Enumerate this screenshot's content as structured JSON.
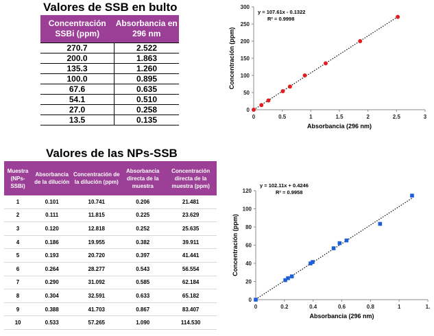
{
  "table1": {
    "title": "Valores de SSB en bulto",
    "headers": [
      "Concentración SSBi (ppm)",
      "Absorbancia en 296 nm"
    ],
    "rows": [
      [
        "270.7",
        "2.522"
      ],
      [
        "200.0",
        "1.863"
      ],
      [
        "135.3",
        "1.260"
      ],
      [
        "100.0",
        "0.895"
      ],
      [
        "67.6",
        "0.635"
      ],
      [
        "54.1",
        "0.510"
      ],
      [
        "27.0",
        "0.258"
      ],
      [
        "13.5",
        "0.135"
      ]
    ]
  },
  "table2": {
    "title": "Valores de las NPs-SSB",
    "headers": [
      "Muestra (NPs-SSBi)",
      "Absorbancia de la dilución",
      "Concentración de la dilución (ppm)",
      "Absorbancia directa de la muestra",
      "Concentración directa de la muestra (ppm)"
    ],
    "rows": [
      [
        "1",
        "0.101",
        "10.741",
        "0.206",
        "21.481"
      ],
      [
        "2",
        "0.111",
        "11.815",
        "0.225",
        "23.629"
      ],
      [
        "3",
        "0.120",
        "12.818",
        "0.252",
        "25.635"
      ],
      [
        "4",
        "0.186",
        "19.955",
        "0.382",
        "39.911"
      ],
      [
        "5",
        "0.193",
        "20.720",
        "0.397",
        "41.441"
      ],
      [
        "6",
        "0.264",
        "28.277",
        "0.543",
        "56.554"
      ],
      [
        "7",
        "0.290",
        "31.092",
        "0.585",
        "62.184"
      ],
      [
        "8",
        "0.304",
        "32.591",
        "0.633",
        "65.182"
      ],
      [
        "9",
        "0.388",
        "41.703",
        "0.867",
        "83.407"
      ],
      [
        "10",
        "0.533",
        "57.265",
        "1.090",
        "114.530"
      ]
    ]
  },
  "chart_data": [
    {
      "type": "scatter",
      "xlabel": "Absorbancia (296 nm)",
      "ylabel": "Concentración (ppm)",
      "xlim": [
        0,
        3
      ],
      "ylim": [
        0,
        300
      ],
      "xticks": [
        "0",
        "0.5",
        "1",
        "1.5",
        "2",
        "2.5",
        "3"
      ],
      "yticks": [
        "0",
        "50",
        "100",
        "150",
        "200",
        "250",
        "300"
      ],
      "equation": "y = 107.61x - 0.1322",
      "r2": "R² = 0.9998",
      "marker_color": "#e02020",
      "marker": "circle",
      "trendline": {
        "slope": 107.61,
        "intercept": -0.1322,
        "x0": 0,
        "x1": 2.522
      },
      "points": [
        [
          0,
          0
        ],
        [
          0.135,
          13.5
        ],
        [
          0.258,
          27.0
        ],
        [
          0.51,
          54.1
        ],
        [
          0.635,
          67.6
        ],
        [
          0.895,
          100.0
        ],
        [
          1.26,
          135.3
        ],
        [
          1.863,
          200.0
        ],
        [
          2.522,
          270.7
        ]
      ]
    },
    {
      "type": "scatter",
      "xlabel": "Absorbancia (296 nm)",
      "ylabel": "Concentración (ppm)",
      "xlim": [
        0,
        1.2
      ],
      "ylim": [
        0,
        120
      ],
      "xticks": [
        "0",
        "0.2",
        "0.4",
        "0.6",
        "0.8",
        "1",
        "1."
      ],
      "yticks": [
        "0",
        "20",
        "40",
        "60",
        "80",
        "100",
        "120"
      ],
      "equation": "y = 102.11x + 0.4246",
      "r2": "R² = 0.9958",
      "marker_color": "#1f5fd6",
      "marker": "square",
      "trendline": {
        "slope": 102.11,
        "intercept": 0.4246,
        "x0": 0,
        "x1": 1.09
      },
      "points": [
        [
          0,
          0
        ],
        [
          0.206,
          21.481
        ],
        [
          0.225,
          23.629
        ],
        [
          0.252,
          25.635
        ],
        [
          0.382,
          39.911
        ],
        [
          0.397,
          41.441
        ],
        [
          0.543,
          56.554
        ],
        [
          0.585,
          62.184
        ],
        [
          0.633,
          65.182
        ],
        [
          0.867,
          83.407
        ],
        [
          1.09,
          114.53
        ]
      ]
    }
  ]
}
